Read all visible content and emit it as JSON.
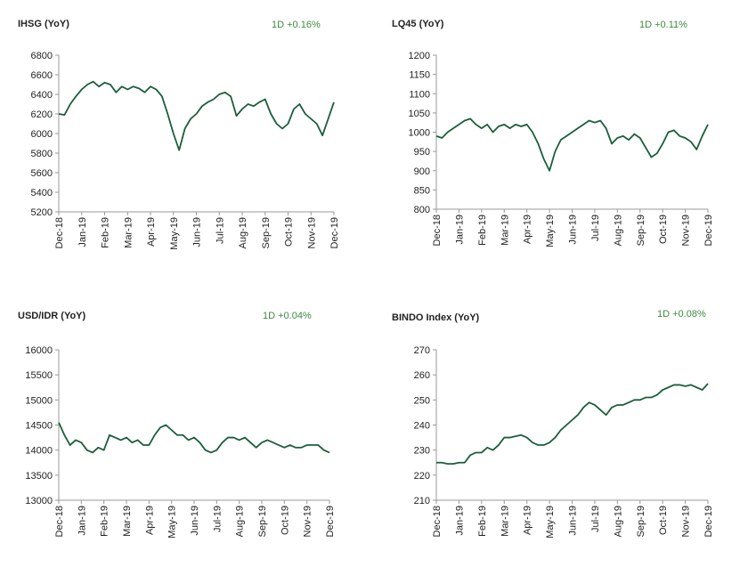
{
  "chart_data": [
    {
      "type": "line",
      "title": "IHSG (YoY)",
      "annotation": "1D +0.16%",
      "color": "#1b5e3b",
      "grid": false,
      "xticks": [
        "Dec-18",
        "Jan-19",
        "Feb-19",
        "Mar-19",
        "Apr-19",
        "May-19",
        "Jun-19",
        "Jul-19",
        "Aug-19",
        "Sep-19",
        "Oct-19",
        "Nov-19",
        "Dec-19"
      ],
      "ylim": [
        5200,
        6800
      ],
      "yticks": [
        5200,
        5400,
        5600,
        5800,
        6000,
        6200,
        6400,
        6600,
        6800
      ],
      "values": [
        6200,
        6190,
        6300,
        6380,
        6450,
        6500,
        6530,
        6480,
        6520,
        6500,
        6420,
        6480,
        6450,
        6480,
        6460,
        6420,
        6480,
        6450,
        6380,
        6200,
        6000,
        5830,
        6050,
        6150,
        6200,
        6280,
        6320,
        6350,
        6400,
        6420,
        6380,
        6180,
        6250,
        6300,
        6280,
        6320,
        6350,
        6200,
        6100,
        6050,
        6100,
        6250,
        6300,
        6200,
        6150,
        6100,
        5980,
        6150,
        6320
      ]
    },
    {
      "type": "line",
      "title": "LQ45 (YoY)",
      "annotation": "1D +0.11%",
      "color": "#1b5e3b",
      "grid": false,
      "xticks": [
        "Dec-18",
        "Jan-19",
        "Feb-19",
        "Mar-19",
        "Apr-19",
        "May-19",
        "Jun-19",
        "Jul-19",
        "Aug-19",
        "Sep-19",
        "Oct-19",
        "Nov-19",
        "Dec-19"
      ],
      "ylim": [
        800,
        1200
      ],
      "yticks": [
        800,
        850,
        900,
        950,
        1000,
        1050,
        1100,
        1150,
        1200
      ],
      "values": [
        990,
        985,
        1000,
        1010,
        1020,
        1030,
        1035,
        1020,
        1010,
        1020,
        1000,
        1015,
        1020,
        1010,
        1020,
        1015,
        1020,
        1000,
        970,
        930,
        900,
        950,
        980,
        990,
        1000,
        1010,
        1020,
        1030,
        1025,
        1030,
        1010,
        970,
        985,
        990,
        980,
        995,
        985,
        960,
        935,
        945,
        970,
        1000,
        1005,
        990,
        985,
        975,
        955,
        990,
        1020
      ]
    },
    {
      "type": "line",
      "title": "USD/IDR  (YoY)",
      "annotation": "1D +0.04%",
      "color": "#1b5e3b",
      "grid": false,
      "xticks": [
        "Dec-18",
        "Jan-19",
        "Feb-19",
        "Mar-19",
        "Apr-19",
        "May-19",
        "Jun-19",
        "Jul-19",
        "Aug-19",
        "Sep-19",
        "Oct-19",
        "Nov-19",
        "Dec-19"
      ],
      "ylim": [
        13000,
        16000
      ],
      "yticks": [
        13000,
        13500,
        14000,
        14500,
        15000,
        15500,
        16000
      ],
      "values": [
        14550,
        14300,
        14100,
        14200,
        14150,
        14000,
        13950,
        14050,
        14000,
        14300,
        14250,
        14200,
        14250,
        14150,
        14200,
        14100,
        14100,
        14300,
        14450,
        14500,
        14400,
        14300,
        14300,
        14200,
        14250,
        14150,
        14000,
        13950,
        14000,
        14150,
        14250,
        14250,
        14200,
        14250,
        14150,
        14050,
        14150,
        14200,
        14150,
        14100,
        14050,
        14100,
        14050,
        14050,
        14100,
        14100,
        14100,
        14000,
        13950
      ]
    },
    {
      "type": "line",
      "title": "BINDO Index (YoY)",
      "annotation": "1D +0.08%",
      "color": "#1b5e3b",
      "grid": false,
      "xticks": [
        "Dec-18",
        "Jan-19",
        "Feb-19",
        "Mar-19",
        "Apr-19",
        "May-19",
        "Jun-19",
        "Jul-19",
        "Aug-19",
        "Sep-19",
        "Oct-19",
        "Nov-19",
        "Dec-19"
      ],
      "ylim": [
        210,
        270
      ],
      "yticks": [
        210,
        220,
        230,
        240,
        250,
        260,
        270
      ],
      "values": [
        225,
        225,
        224.5,
        224.5,
        225,
        225,
        228,
        229,
        229,
        231,
        230,
        232,
        235,
        235,
        235.5,
        236,
        235,
        233,
        232,
        232,
        233,
        235,
        238,
        240,
        242,
        244,
        247,
        249,
        248,
        246,
        244,
        247,
        248,
        248,
        249,
        250,
        250,
        251,
        251,
        252,
        254,
        255,
        256,
        256,
        255.5,
        256,
        255,
        254,
        256.5
      ]
    }
  ]
}
